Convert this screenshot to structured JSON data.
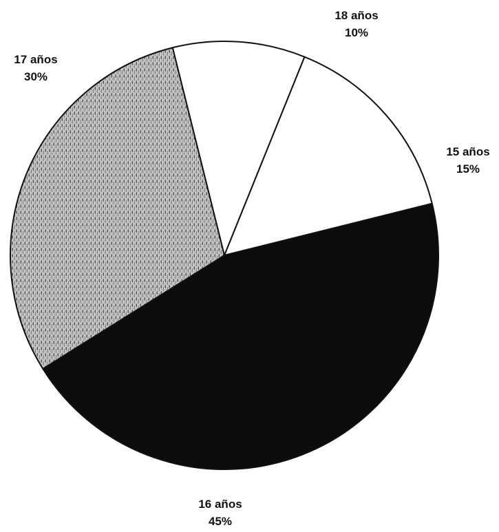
{
  "chart_data": {
    "type": "pie",
    "title": "",
    "legend": "none",
    "slices": [
      {
        "label": "18 años",
        "value": 10,
        "value_label": "10%",
        "fill": "white"
      },
      {
        "label": "15 años",
        "value": 15,
        "value_label": "15%",
        "fill": "white"
      },
      {
        "label": "16 años",
        "value": 45,
        "value_label": "45%",
        "fill": "black"
      },
      {
        "label": "17 años",
        "value": 30,
        "value_label": "30%",
        "fill": "stipple-gray"
      }
    ],
    "colors": {
      "white": "#ffffff",
      "black": "#0c0c0c",
      "stipple_gray": "#b9b9b9",
      "outline": "#111111"
    }
  }
}
